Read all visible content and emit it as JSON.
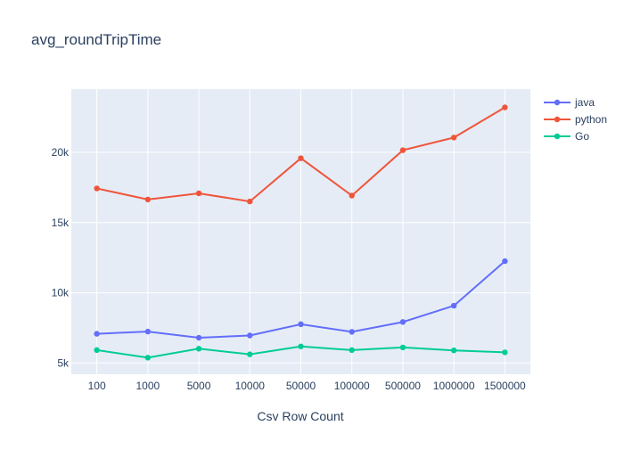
{
  "chart_data": {
    "type": "line",
    "title": "avg_roundTripTime",
    "xlabel": "Csv Row Count",
    "ylabel": "",
    "categories": [
      "100",
      "1000",
      "5000",
      "10000",
      "50000",
      "100000",
      "500000",
      "1000000",
      "1500000"
    ],
    "y_ticks": [
      5000,
      10000,
      15000,
      20000
    ],
    "y_tick_labels": [
      "5k",
      "10k",
      "15k",
      "20k"
    ],
    "ylim": [
      4200,
      24500
    ],
    "grid": true,
    "legend_position": "top-right",
    "plot_background": "#E5ECF6",
    "series": [
      {
        "name": "java",
        "color": "#636EFA",
        "values": [
          7080,
          7240,
          6800,
          6960,
          7760,
          7220,
          7920,
          9080,
          12250
        ]
      },
      {
        "name": "python",
        "color": "#EF553B",
        "values": [
          17430,
          16640,
          17080,
          16500,
          19580,
          16920,
          20150,
          21050,
          23200
        ]
      },
      {
        "name": "Go",
        "color": "#00CC96",
        "values": [
          5920,
          5380,
          6020,
          5620,
          6180,
          5920,
          6110,
          5900,
          5760
        ]
      }
    ]
  }
}
